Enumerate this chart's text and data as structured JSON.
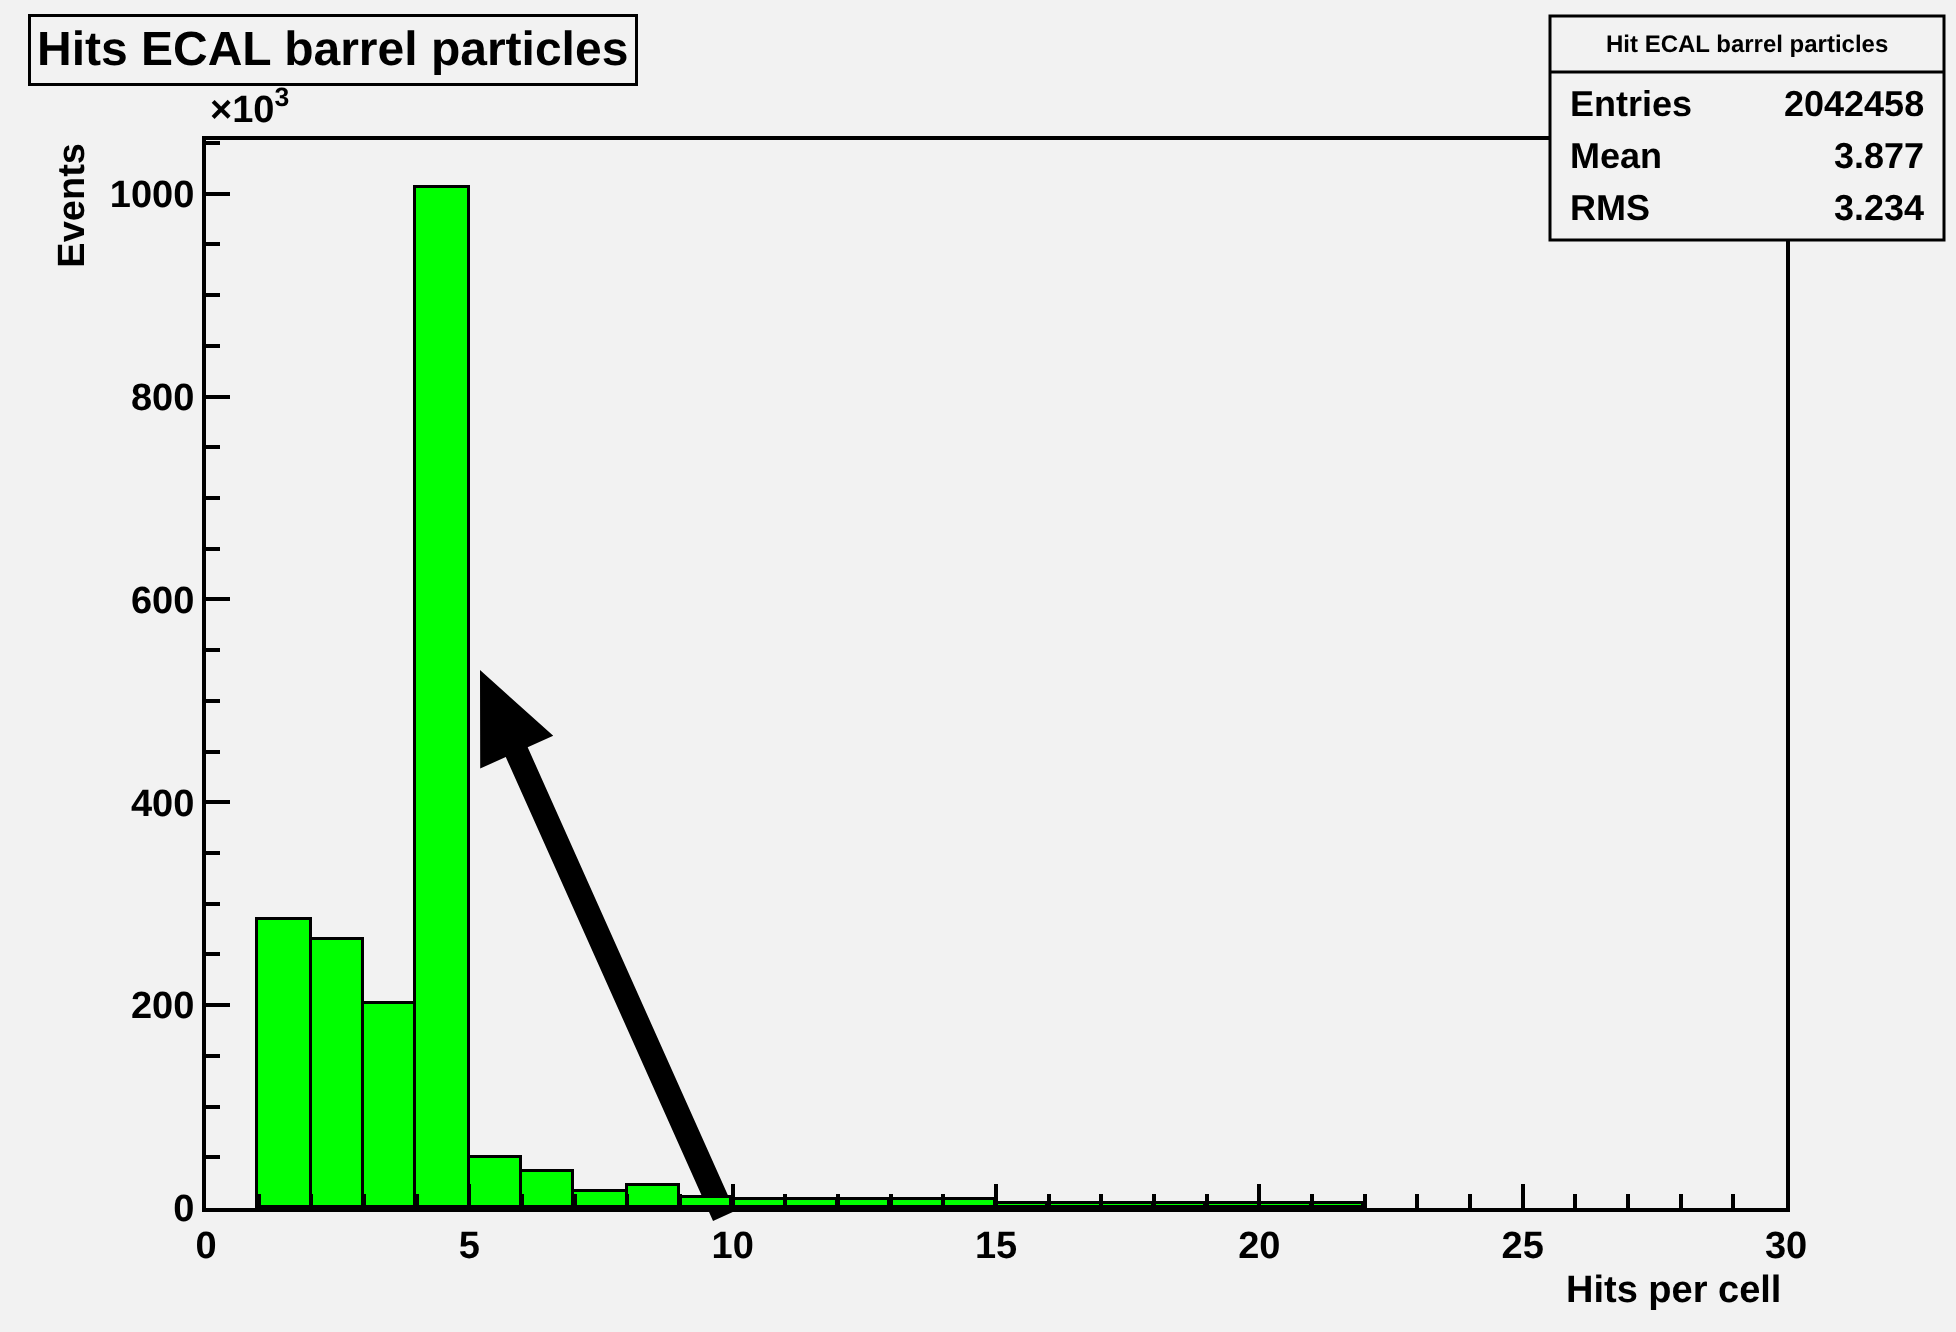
{
  "chart_data": {
    "type": "histogram",
    "title": "Hits ECAL barrel particles",
    "xlabel": "Hits per cell",
    "ylabel": "Events",
    "bins": [
      0,
      1,
      2,
      3,
      4,
      5,
      6,
      7,
      8,
      9,
      10,
      11,
      12,
      13,
      14,
      15,
      16,
      17,
      18,
      19,
      20,
      21,
      22,
      23,
      24,
      25,
      26,
      27,
      28,
      29,
      30
    ],
    "values": [
      0,
      284,
      265,
      202,
      1006,
      50,
      36,
      16,
      22,
      10,
      7,
      7,
      7,
      7,
      7,
      3,
      3,
      3,
      3,
      3,
      3,
      3,
      0,
      0,
      0,
      0,
      0,
      0,
      0,
      0
    ],
    "color": "#00ff00",
    "xlim": [
      0,
      30
    ],
    "xticks": [
      0,
      5,
      10,
      15,
      20,
      25,
      30
    ],
    "ylim": [
      0,
      1053
    ],
    "yticks": [
      0,
      200,
      400,
      600,
      800,
      1000
    ],
    "grid": false,
    "annotations": [
      "×10$^{3}$",
      "Hit ECAL barrel particles",
      "Entries 2042458",
      "Mean 3.877",
      "RMS 3.234"
    ]
  }
}
